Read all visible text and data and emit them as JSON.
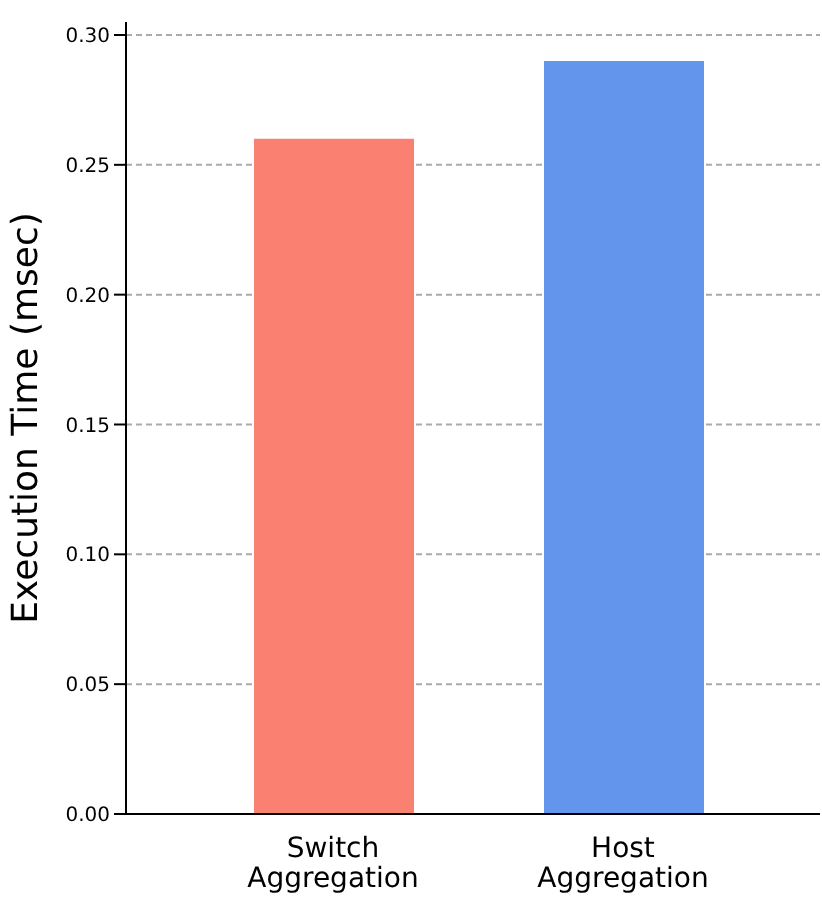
{
  "chart_data": {
    "type": "bar",
    "ylabel": "Execution Time (msec)",
    "categories": [
      "Switch Aggregation",
      "Host Aggregation"
    ],
    "values": [
      0.26,
      0.29
    ],
    "colors": [
      "#fa8072",
      "#6495ed"
    ],
    "ylim": [
      0,
      0.305
    ],
    "yticks": [
      {
        "value": 0,
        "label": "0.00"
      },
      {
        "value": 0.05,
        "label": "0.05"
      },
      {
        "value": 0.1,
        "label": "0.10"
      },
      {
        "value": 0.15,
        "label": "0.15"
      },
      {
        "value": 0.2,
        "label": "0.20"
      },
      {
        "value": 0.25,
        "label": "0.25"
      },
      {
        "value": 0.3,
        "label": "0.30"
      }
    ],
    "grid": "y"
  }
}
